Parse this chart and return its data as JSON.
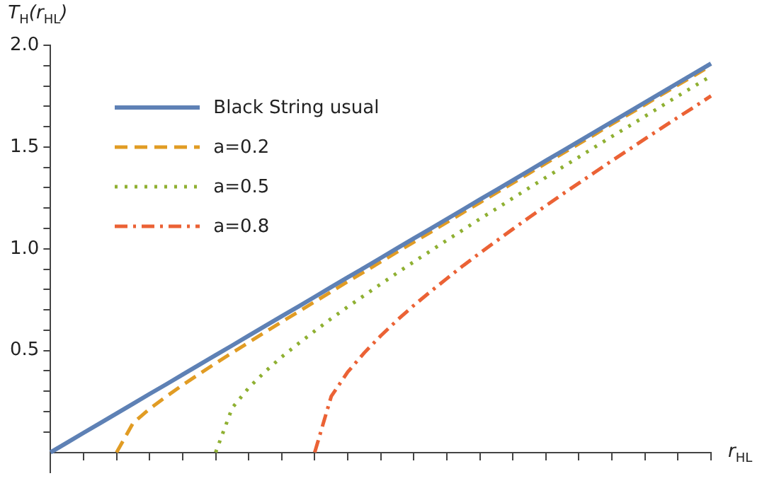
{
  "chart_data": {
    "type": "line",
    "xlabel": "r$_{HL}$",
    "ylabel": "T$_{H}$(r$_{HL}$)",
    "categories": [
      null,
      null,
      null,
      null,
      null,
      null,
      null,
      null,
      null,
      null,
      null,
      null,
      null,
      null,
      null,
      null,
      null,
      null,
      null,
      null,
      null,
      null,
      null,
      null,
      null,
      null,
      null,
      null,
      null,
      null,
      null,
      null,
      null,
      null,
      null,
      null,
      null,
      null,
      null,
      null,
      null
    ],
    "ylim": [
      -0.1,
      2.0
    ],
    "yticks": [
      {
        "value": 0.1,
        "label": null
      },
      {
        "value": 0.2,
        "label": null
      },
      {
        "value": 0.3,
        "label": null
      },
      {
        "value": 0.4,
        "label": null
      },
      {
        "value": 0.5,
        "label": "0.5"
      },
      {
        "value": 0.6,
        "label": null
      },
      {
        "value": 0.7,
        "label": null
      },
      {
        "value": 0.8,
        "label": null
      },
      {
        "value": 0.9,
        "label": null
      },
      {
        "value": 1.0,
        "label": "1.0"
      },
      {
        "value": 1.1,
        "label": null
      },
      {
        "value": 1.2,
        "label": null
      },
      {
        "value": 1.3,
        "label": null
      },
      {
        "value": 1.4,
        "label": null
      },
      {
        "value": 1.5,
        "label": "1.5"
      },
      {
        "value": 1.6,
        "label": null
      },
      {
        "value": 1.7,
        "label": null
      },
      {
        "value": 1.8,
        "label": null
      },
      {
        "value": 1.9,
        "label": null
      },
      {
        "value": 2.0,
        "label": "2.0"
      }
    ],
    "grid": false,
    "legend": "top left",
    "marker": "none",
    "series": [
      {
        "name": "Black String usual",
        "color": "#5e81b5",
        "line_style": "solid",
        "values": [
          0,
          0.048,
          0.096,
          0.143,
          0.191,
          0.239,
          0.287,
          0.334,
          0.382,
          0.43,
          0.478,
          0.525,
          0.573,
          0.621,
          0.669,
          0.716,
          0.764,
          0.812,
          0.86,
          0.907,
          0.955,
          1.003,
          1.051,
          1.098,
          1.146,
          1.194,
          1.242,
          1.289,
          1.337,
          1.385,
          1.433,
          1.48,
          1.528,
          1.576,
          1.624,
          1.671,
          1.719,
          1.767,
          1.815,
          1.862,
          1.91
        ]
      },
      {
        "name": "a=0.2",
        "color": "#e19c24",
        "line_style": "dashed",
        "values": [
          null,
          null,
          null,
          null,
          0,
          0.144,
          0.214,
          0.274,
          0.331,
          0.385,
          0.438,
          0.489,
          0.54,
          0.591,
          0.641,
          0.69,
          0.74,
          0.789,
          0.839,
          0.887,
          0.936,
          0.985,
          1.033,
          1.081,
          1.13,
          1.179,
          1.227,
          1.275,
          1.323,
          1.372,
          1.42,
          1.468,
          1.516,
          1.564,
          1.613,
          1.66,
          1.708,
          1.757,
          1.805,
          1.852,
          1.9
        ]
      },
      {
        "name": "a=0.5",
        "color": "#8fb032",
        "line_style": "dotted",
        "values": [
          null,
          null,
          null,
          null,
          null,
          null,
          null,
          null,
          null,
          null,
          0,
          0.218,
          0.317,
          0.397,
          0.469,
          0.534,
          0.596,
          0.657,
          0.715,
          0.771,
          0.827,
          0.882,
          0.936,
          0.989,
          1.042,
          1.094,
          1.147,
          1.197,
          1.249,
          1.3,
          1.351,
          1.401,
          1.451,
          1.502,
          1.552,
          1.601,
          1.651,
          1.701,
          1.751,
          1.8,
          1.849
        ]
      },
      {
        "name": "a=0.8",
        "color": "#eb6235",
        "line_style": "dashdot",
        "values": [
          null,
          null,
          null,
          null,
          null,
          null,
          null,
          null,
          null,
          null,
          null,
          null,
          null,
          null,
          null,
          null,
          0,
          0.275,
          0.395,
          0.489,
          0.573,
          0.65,
          0.722,
          0.789,
          0.854,
          0.918,
          0.979,
          1.038,
          1.097,
          1.155,
          1.212,
          1.268,
          1.323,
          1.378,
          1.433,
          1.486,
          1.54,
          1.593,
          1.646,
          1.698,
          1.751
        ]
      }
    ]
  }
}
